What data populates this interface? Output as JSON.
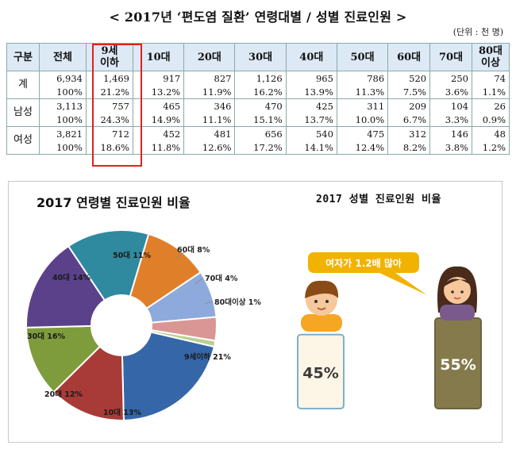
{
  "title": "< 2017년 ‘편도염 질환’ 연령대별 / 성별 진료인원 >",
  "unit": "(단위 : 천 명)",
  "table": {
    "headers": [
      "구분",
      "전체",
      "9세\n이하",
      "10대",
      "20대",
      "30대",
      "40대",
      "50대",
      "60대",
      "70대",
      "80대\n이상"
    ],
    "rows": [
      {
        "label": "계",
        "counts": [
          "6,934",
          "1,469",
          "917",
          "827",
          "1,126",
          "965",
          "786",
          "520",
          "250",
          "74"
        ],
        "pcts": [
          "100%",
          "21.2%",
          "13.2%",
          "11.9%",
          "16.2%",
          "13.9%",
          "11.3%",
          "7.5%",
          "3.6%",
          "1.1%"
        ]
      },
      {
        "label": "남성",
        "counts": [
          "3,113",
          "757",
          "465",
          "346",
          "470",
          "425",
          "311",
          "209",
          "104",
          "26"
        ],
        "pcts": [
          "100%",
          "24.3%",
          "14.9%",
          "11.1%",
          "15.1%",
          "13.7%",
          "10.0%",
          "6.7%",
          "3.3%",
          "0.9%"
        ]
      },
      {
        "label": "여성",
        "counts": [
          "3,821",
          "712",
          "452",
          "481",
          "656",
          "540",
          "475",
          "312",
          "146",
          "48"
        ],
        "pcts": [
          "100%",
          "18.6%",
          "11.8%",
          "12.6%",
          "17.2%",
          "14.1%",
          "12.4%",
          "8.2%",
          "3.8%",
          "1.2%"
        ]
      }
    ]
  },
  "chart_data": [
    {
      "type": "pie",
      "title": "2017 연령별 진료인원 비율",
      "labels": [
        "9세이하 21%",
        "10대 13%",
        "20대 12%",
        "30대 16%",
        "40대 14%",
        "50대 11%",
        "60대 8%",
        "70대 4%",
        "80대이상 1%"
      ],
      "categories": [
        "9세이하",
        "10대",
        "20대",
        "30대",
        "40대",
        "50대",
        "60대",
        "70대",
        "80대이상"
      ],
      "values": [
        21,
        13,
        12,
        16,
        14,
        11,
        8,
        4,
        1
      ],
      "colors": [
        "#3567a8",
        "#a83a37",
        "#7f9c3c",
        "#5b418a",
        "#2f8aa0",
        "#e07f2a",
        "#8ea9dc",
        "#d99695",
        "#b9d08f"
      ]
    },
    {
      "type": "bar",
      "title": "2017 성별 진료인원 비율",
      "categories": [
        "남성",
        "여성"
      ],
      "values": [
        45,
        55
      ],
      "value_labels": [
        "45%",
        "55%"
      ],
      "colors": [
        "#fdf5e6",
        "#857a4c"
      ],
      "callout": "여자가 1.2배 많아"
    }
  ]
}
